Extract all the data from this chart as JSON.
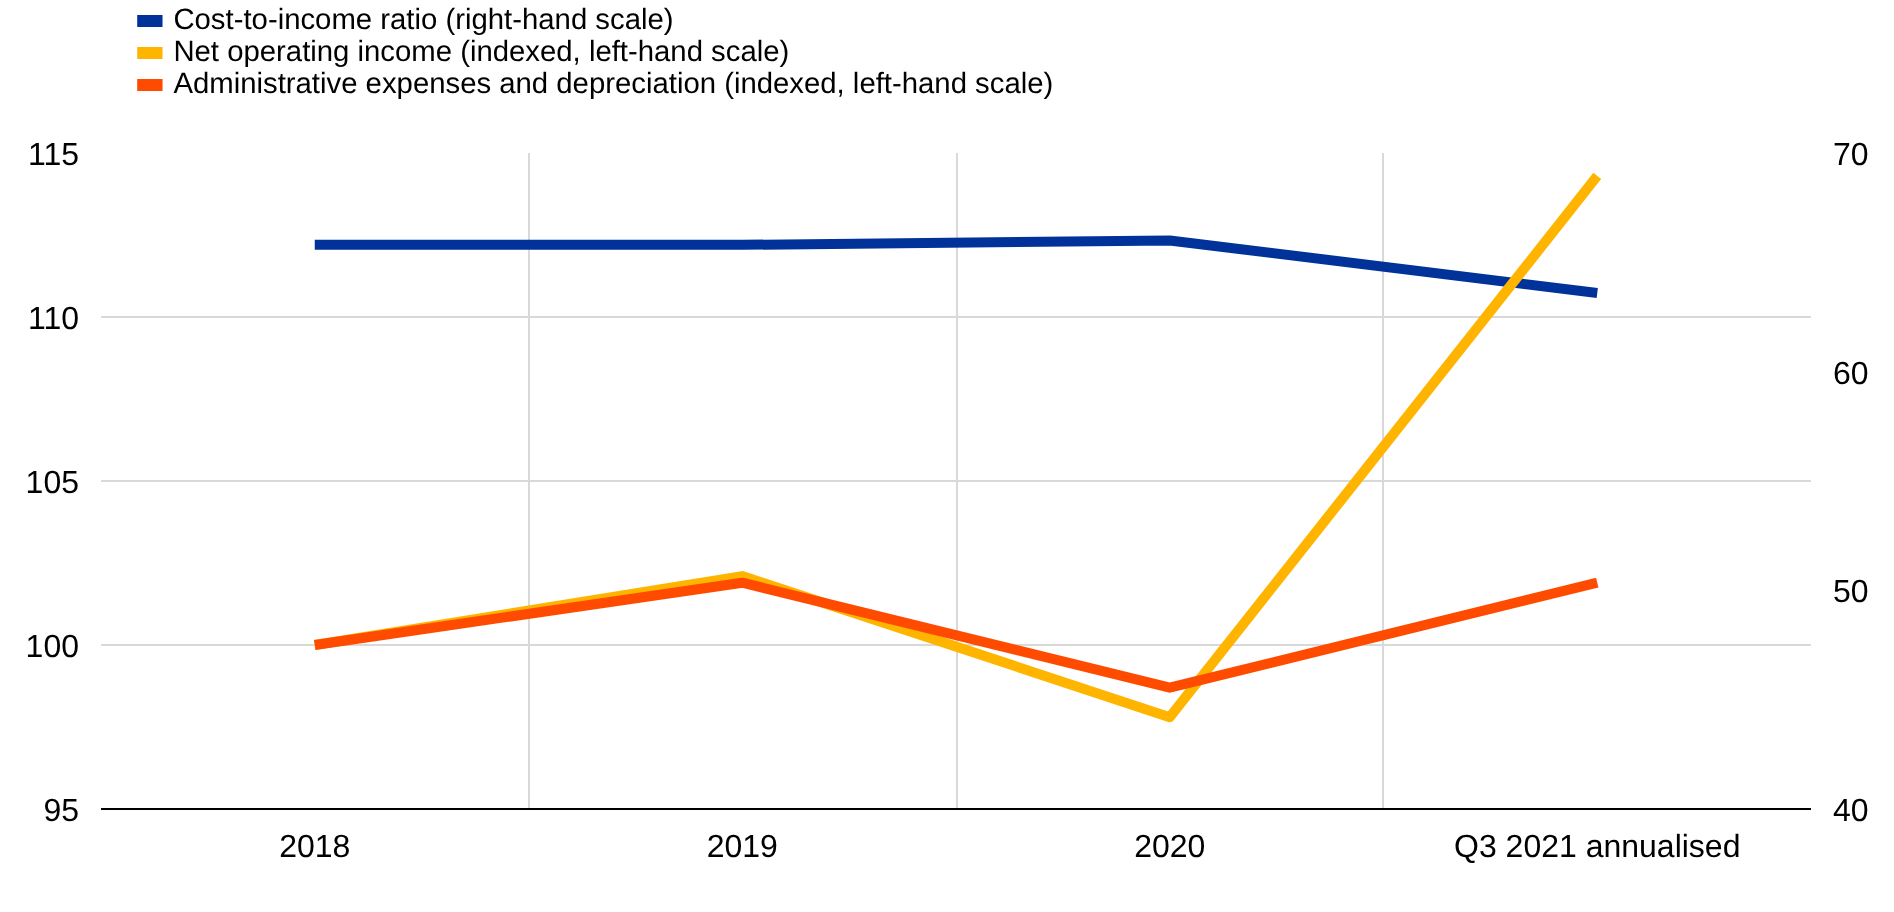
{
  "chart_data": {
    "type": "line",
    "categories": [
      "2018",
      "2019",
      "2020",
      "Q3 2021 annualised"
    ],
    "series": [
      {
        "name": "Cost-to-income ratio (right-hand scale)",
        "color": "#003299",
        "values": [
          65.8,
          65.8,
          66.0,
          63.6
        ],
        "axis": "y2"
      },
      {
        "name": "Net operating income (indexed, left-hand scale)",
        "color": "#ffb400",
        "values": [
          100,
          102.1,
          97.8,
          114.3
        ]
      },
      {
        "name": "Administrative expenses and depreciation (indexed, left-hand scale)",
        "color": "#ff4b00",
        "values": [
          100,
          101.9,
          98.7,
          101.9
        ]
      }
    ],
    "ylim": [
      95,
      115
    ],
    "yticks": [
      95,
      100,
      105,
      110,
      115
    ],
    "y2lim": [
      40,
      70
    ],
    "y2ticks": [
      40,
      50,
      60,
      70
    ],
    "grid": true,
    "legend": "top left",
    "line_style": "solid",
    "marker": "none"
  }
}
